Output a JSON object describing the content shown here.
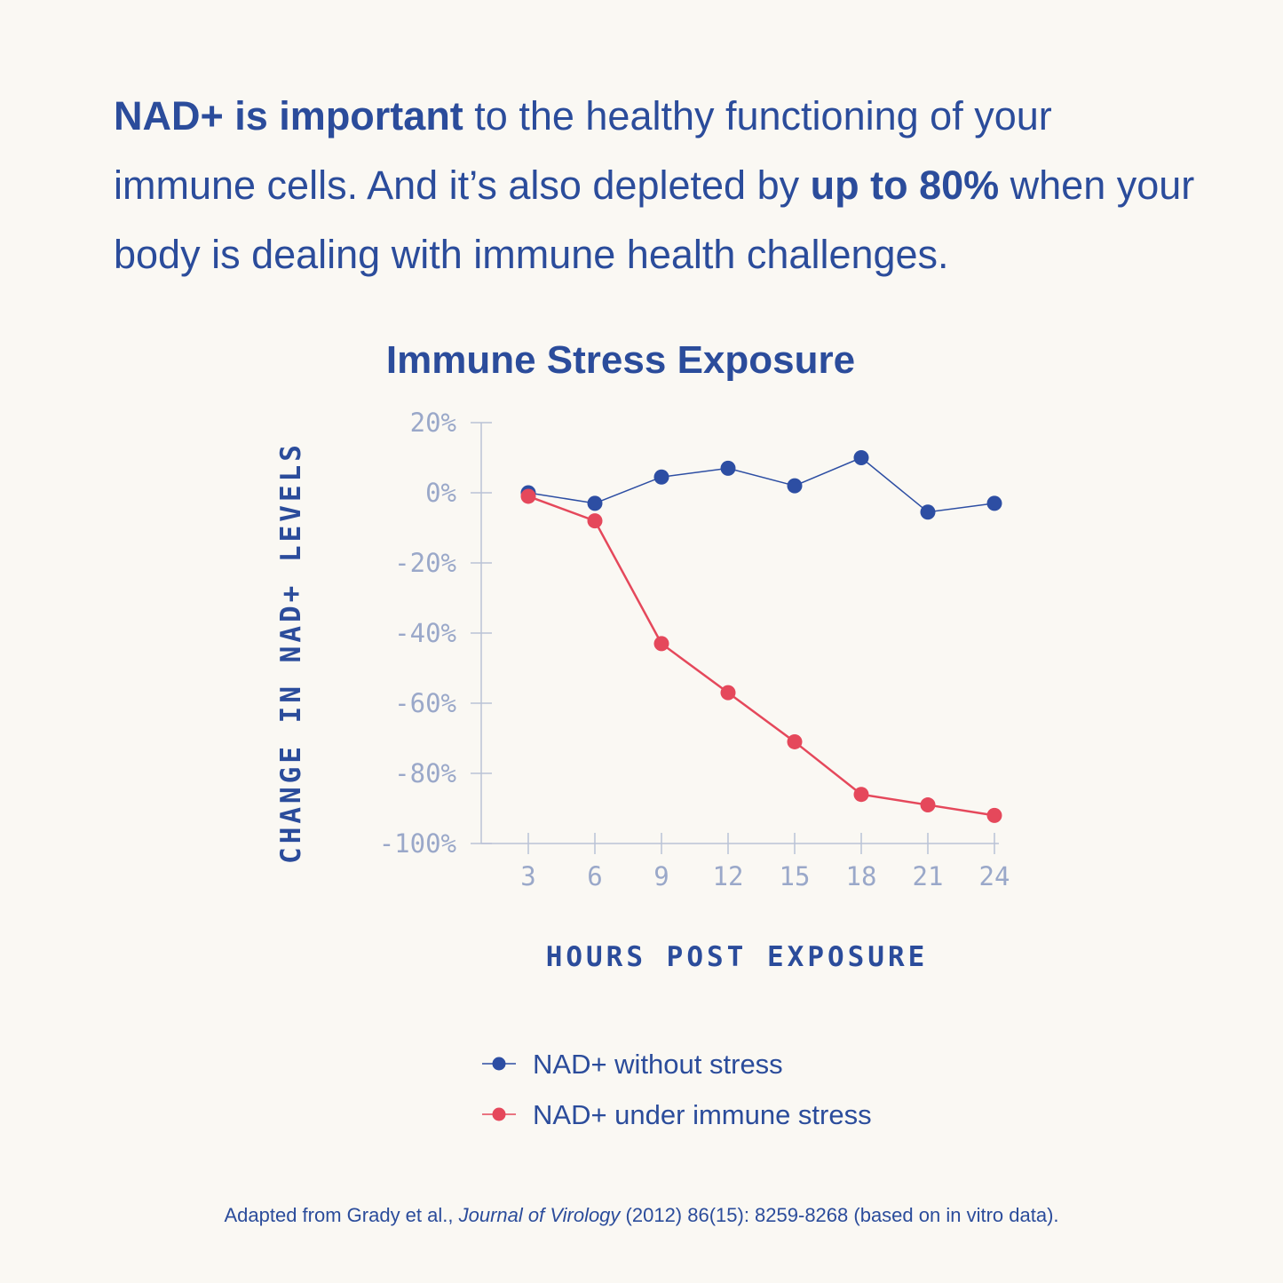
{
  "intro": {
    "part1_bold": "NAD+ is important",
    "part2": " to the healthy functioning of your immune cells. And it’s also depleted by ",
    "part3_bold": "up to 80%",
    "part4": " when your body is dealing with immune health challenges."
  },
  "colors": {
    "background": "#faf8f3",
    "brand_blue": "#2b4c9b",
    "series_blue": "#2d4ea3",
    "series_red": "#e5485b",
    "axis_gray": "#b9c2d6",
    "tick_text": "#9aa8c9"
  },
  "chart_data": {
    "type": "line",
    "title": "Immune Stress Exposure",
    "xlabel": "HOURS POST EXPOSURE",
    "ylabel": "CHANGE IN NAD+ LEVELS",
    "x": [
      3,
      6,
      9,
      12,
      15,
      18,
      21,
      24
    ],
    "x_tick_labels": [
      "3",
      "6",
      "9",
      "12",
      "15",
      "18",
      "21",
      "24"
    ],
    "y_ticks": [
      20,
      0,
      -20,
      -40,
      -60,
      -80,
      -100
    ],
    "y_tick_labels": [
      "20%",
      "0%",
      "-20%",
      "-40%",
      "-60%",
      "-80%",
      "-100%"
    ],
    "ylim": [
      -100,
      20
    ],
    "grid": false,
    "legend_position": "bottom",
    "series": [
      {
        "name": "NAD+ without stress",
        "color": "#2d4ea3",
        "values": [
          0,
          -3,
          4.5,
          7,
          2,
          10,
          -5.5,
          -3
        ]
      },
      {
        "name": "NAD+ under immune stress",
        "color": "#e5485b",
        "values": [
          -1,
          -8,
          -43,
          -57,
          -71,
          -86,
          -89,
          -92
        ]
      }
    ]
  },
  "source": {
    "pre": "Adapted from Grady et al., ",
    "journal": "Journal of Virology",
    "post": " (2012) 86(15): 8259-8268 (based on in vitro data)."
  }
}
